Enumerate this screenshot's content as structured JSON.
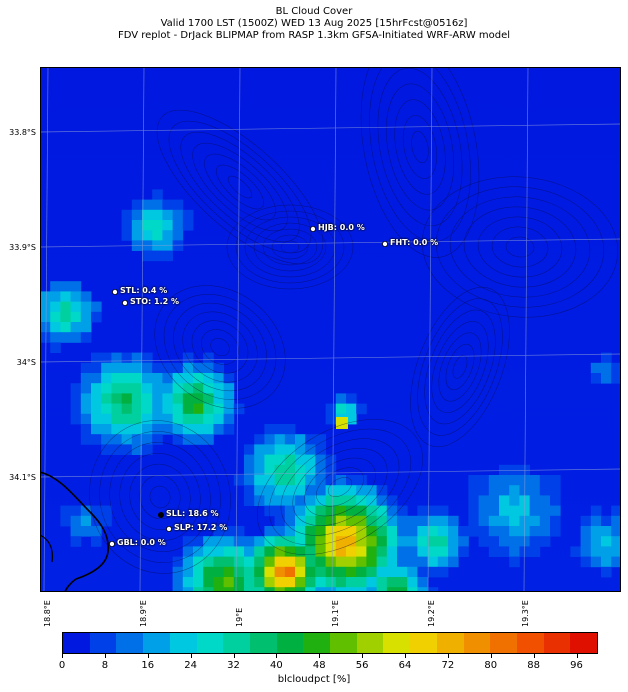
{
  "title": {
    "line1": "BL Cloud Cover",
    "line2": "Valid 1700 LST (1500Z) WED 13 Aug 2025 [15hrFcst@0516z]",
    "line3": "FDV replot - DrJack BLIPMAP from RASP 1.3km GFSA-Initiated WRF-ARW model"
  },
  "axes": {
    "lat_labels": [
      "33.8°S",
      "33.9°S",
      "34°S",
      "34.1°S"
    ],
    "lon_labels": [
      "18.8°E",
      "18.9°E",
      "19°E",
      "19.1°E",
      "19.2°E",
      "19.3°E"
    ]
  },
  "stations": [
    {
      "id": "HJB",
      "label": "HJB: 0.0 %",
      "value": 0.0
    },
    {
      "id": "FHT",
      "label": "FHT: 0.0 %",
      "value": 0.0
    },
    {
      "id": "STL",
      "label": "STL: 0.4 %",
      "value": 0.4
    },
    {
      "id": "STO",
      "label": "STO: 1.2 %",
      "value": 1.2
    },
    {
      "id": "SLL",
      "label": "SLL: 18.6 %",
      "value": 18.6
    },
    {
      "id": "SLP",
      "label": "SLP: 17.2 %",
      "value": 17.2
    },
    {
      "id": "GBL",
      "label": "GBL: 0.0 %",
      "value": 0.0
    }
  ],
  "colorbar": {
    "label": "blcloudpct [%]",
    "ticks": [
      "0",
      "8",
      "16",
      "24",
      "32",
      "40",
      "48",
      "56",
      "64",
      "72",
      "80",
      "88",
      "96"
    ],
    "colors": [
      "#0018e0",
      "#0040e8",
      "#0070e8",
      "#00a0e8",
      "#00c8e0",
      "#00d8c8",
      "#00d0a0",
      "#00c070",
      "#00b040",
      "#20b010",
      "#60c000",
      "#a0d000",
      "#d8e000",
      "#f0d000",
      "#f0b000",
      "#f09000",
      "#f07000",
      "#f05000",
      "#e83000",
      "#e01000"
    ]
  }
}
